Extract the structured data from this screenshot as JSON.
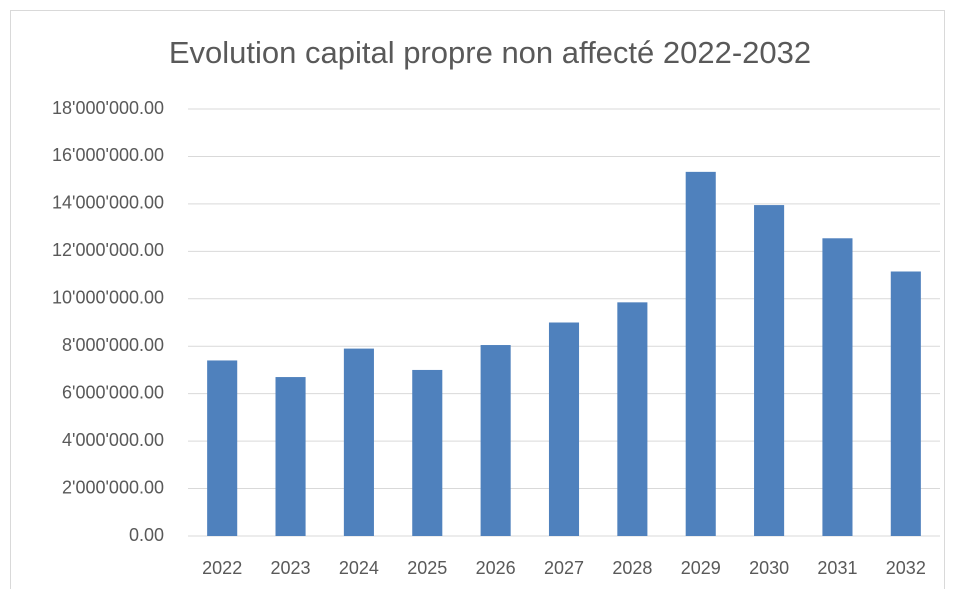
{
  "chart_data": {
    "type": "bar",
    "title": "Evolution capital propre non affecté 2022-2032",
    "categories": [
      "2022",
      "2023",
      "2024",
      "2025",
      "2026",
      "2027",
      "2028",
      "2029",
      "2030",
      "2031",
      "2032"
    ],
    "values": [
      7400000,
      6700000,
      7900000,
      7000000,
      8050000,
      9000000,
      9850000,
      15350000,
      13950000,
      12550000,
      11150000
    ],
    "color": "#4f81bd",
    "ylim": [
      0,
      18000000
    ],
    "yticks": [
      {
        "value": 0,
        "label": "0.00"
      },
      {
        "value": 2000000,
        "label": "2'000'000.00"
      },
      {
        "value": 4000000,
        "label": "4'000'000.00"
      },
      {
        "value": 6000000,
        "label": "6'000'000.00"
      },
      {
        "value": 8000000,
        "label": "8'000'000.00"
      },
      {
        "value": 10000000,
        "label": "10'000'000.00"
      },
      {
        "value": 12000000,
        "label": "12'000'000.00"
      },
      {
        "value": 14000000,
        "label": "14'000'000.00"
      },
      {
        "value": 16000000,
        "label": "16'000'000.00"
      },
      {
        "value": 18000000,
        "label": "18'000'000.00"
      }
    ],
    "grid": true
  }
}
